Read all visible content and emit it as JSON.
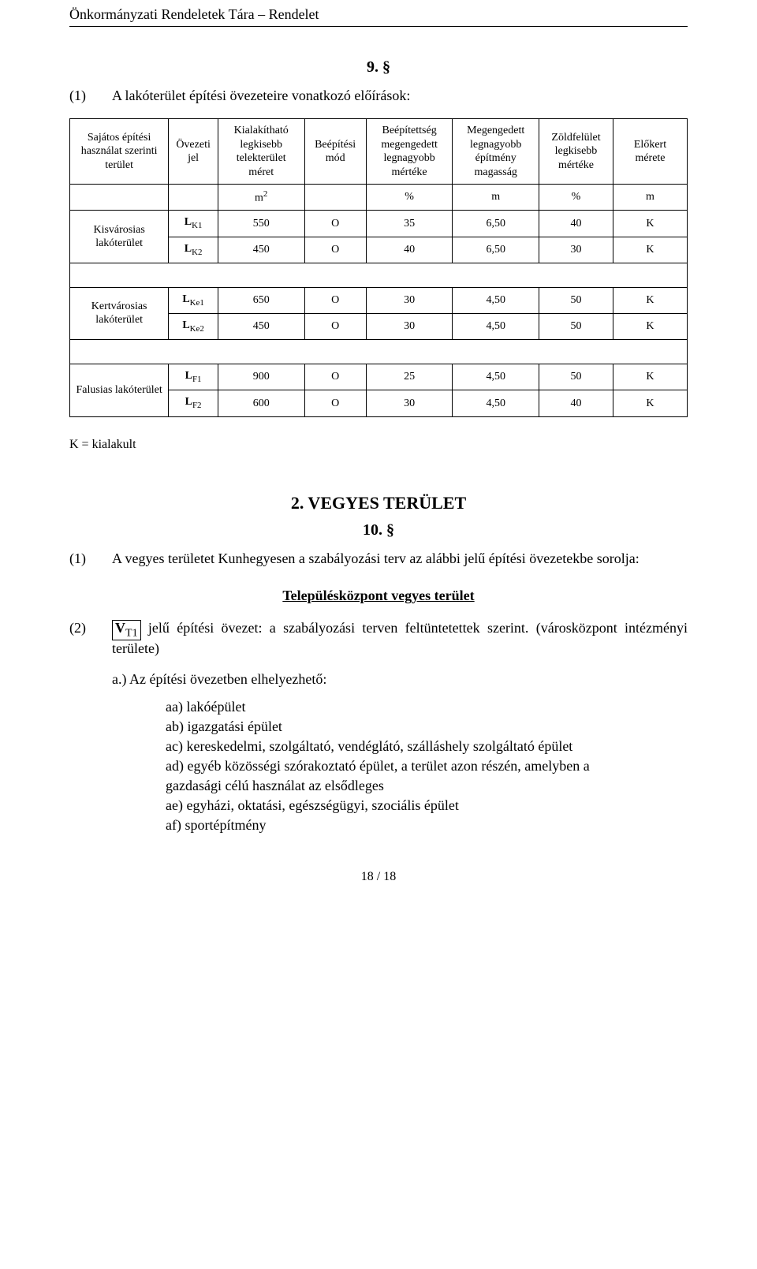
{
  "header": {
    "running": "Önkormányzati Rendeletek Tára – Rendelet"
  },
  "section9": {
    "number": "9. §",
    "para1_num": "(1)",
    "para1_text": "A lakóterület építési övezeteire vonatkozó előírások:"
  },
  "table": {
    "head": {
      "c1": "Sajátos építési használat szerinti terület",
      "c2": "Övezeti jel",
      "c3": "Kialakítható legkisebb telekterület méret",
      "c4": "Beépítési mód",
      "c5": "Beépítettség megengedett legnagyobb mértéke",
      "c6": "Megengedett legnagyobb építmény magasság",
      "c7": "Zöldfelület legkisebb mértéke",
      "c8": "Előkert mérete"
    },
    "units": {
      "c3": "m",
      "c3_sup": "2",
      "c5": "%",
      "c6": "m",
      "c7": "%",
      "c8": "m"
    },
    "groups": [
      {
        "label": "Kisvárosias lakóterület",
        "rows": [
          {
            "sym_base": "L",
            "sym_sub": "K1",
            "area": "550",
            "mode": "O",
            "cov": "35",
            "h": "6,50",
            "green": "40",
            "front": "K"
          },
          {
            "sym_base": "L",
            "sym_sub": "K2",
            "area": "450",
            "mode": "O",
            "cov": "40",
            "h": "6,50",
            "green": "30",
            "front": "K"
          }
        ]
      },
      {
        "label": "Kertvárosias lakóterület",
        "rows": [
          {
            "sym_base": "L",
            "sym_sub": "Ke1",
            "area": "650",
            "mode": "O",
            "cov": "30",
            "h": "4,50",
            "green": "50",
            "front": "K"
          },
          {
            "sym_base": "L",
            "sym_sub": "Ke2",
            "area": "450",
            "mode": "O",
            "cov": "30",
            "h": "4,50",
            "green": "50",
            "front": "K"
          }
        ]
      },
      {
        "label": "Falusias lakóterület",
        "rows": [
          {
            "sym_base": "L",
            "sym_sub": "F1",
            "area": "900",
            "mode": "O",
            "cov": "25",
            "h": "4,50",
            "green": "50",
            "front": "K"
          },
          {
            "sym_base": "L",
            "sym_sub": "F2",
            "area": "600",
            "mode": "O",
            "cov": "30",
            "h": "4,50",
            "green": "40",
            "front": "K"
          }
        ]
      }
    ]
  },
  "note": "K = kialakult",
  "section10": {
    "title": "2. VEGYES TERÜLET",
    "number": "10. §",
    "para1_num": "(1)",
    "para1_text": "A vegyes területet Kunhegyesen a szabályozási terv az alábbi jelű építési övezetekbe sorolja:",
    "sub_title": "Településközpont vegyes terület",
    "para2_num": "(2)",
    "para2_sym_base": "V",
    "para2_sym_sub": "T1",
    "para2_text_after": " jelű építési övezet: a szabályozási terven feltüntetettek szerint. (városközpont intézményi területe)",
    "sub_a": "a.) Az építési övezetben elhelyezhető:",
    "list": {
      "aa": "aa) lakóépület",
      "ab": "ab) igazgatási épület",
      "ac": "ac) kereskedelmi, szolgáltató, vendéglátó, szálláshely szolgáltató épület",
      "ad_l1": "ad) egyéb közösségi szórakoztató épület, a terület azon részén, amelyben a",
      "ad_l2": "gazdasági célú használat az elsődleges",
      "ae": "ae) egyházi, oktatási, egészségügyi, szociális épület",
      "af": "af) sportépítmény"
    }
  },
  "footer": {
    "page": "18 / 18"
  }
}
